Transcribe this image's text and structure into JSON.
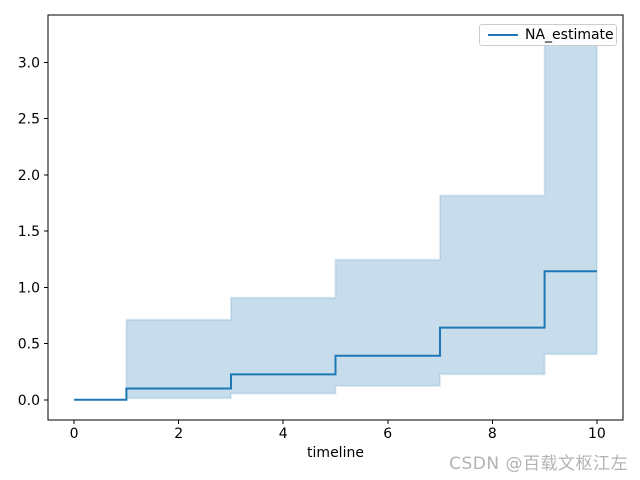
{
  "figure": {
    "xlabel": "timeline",
    "legend_label": "NA_estimate",
    "watermark": "CSDN @百载文枢江左",
    "colors": {
      "line": "#1f77b4",
      "band_fill": "rgba(31,119,180,0.25)",
      "band_edge": "rgba(31,119,180,0.15)",
      "spine": "#000000",
      "tick_label": "#000000",
      "watermark": "#b3b3b3",
      "legend_border": "#cccccc",
      "background": "#ffffff"
    }
  },
  "chart_data": {
    "type": "line",
    "subtype": "step-post cumulative hazard (Nelson-Aalen) with 95% confidence band",
    "title": "",
    "xlabel": "timeline",
    "ylabel": "",
    "grid": false,
    "legend_position": "upper-right",
    "legend_entries": [
      "NA_estimate"
    ],
    "xlim": [
      -0.5,
      10.5
    ],
    "ylim": [
      -0.18,
      3.42
    ],
    "x_ticks": [
      0,
      2,
      4,
      6,
      8,
      10
    ],
    "y_ticks": [
      0.0,
      0.5,
      1.0,
      1.5,
      2.0,
      2.5,
      3.0
    ],
    "series": [
      {
        "name": "NA_estimate",
        "color": "#1f77b4",
        "step": "post",
        "x": [
          0,
          1,
          3,
          5,
          7,
          9,
          10
        ],
        "y": [
          0.0,
          0.1,
          0.225,
          0.3917,
          0.6417,
          1.1417,
          1.1417
        ]
      }
    ],
    "confidence_band": {
      "color": "#1f77b4",
      "alpha": 0.25,
      "x": [
        1,
        3,
        5,
        7,
        9,
        10
      ],
      "lower": [
        0.0141,
        0.0558,
        0.1232,
        0.2268,
        0.404,
        0.404
      ],
      "upper": [
        0.7104,
        0.907,
        1.2452,
        1.8159,
        3.2257,
        3.2257
      ]
    }
  }
}
